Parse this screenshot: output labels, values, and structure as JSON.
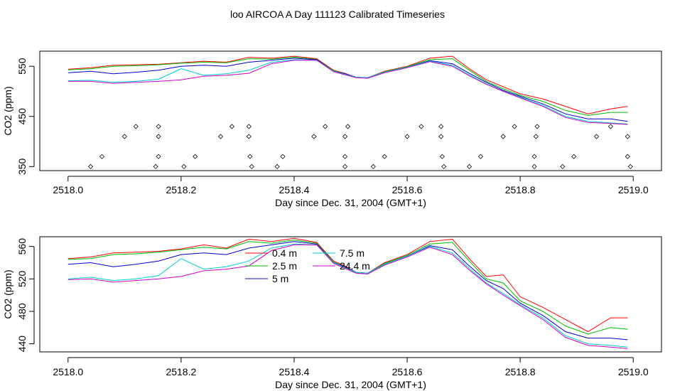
{
  "title": "loo AIRCOA A  Day 111123  Calibrated Timeseries",
  "chart_data": [
    {
      "type": "line",
      "xlabel": "Day since Dec. 31, 2004 (GMT+1)",
      "ylabel": "CO2 (ppm)",
      "xlim": [
        2517.95,
        2519.05
      ],
      "ylim": [
        342,
        580
      ],
      "xticks": [
        "2518.0",
        "2518.2",
        "2518.4",
        "2518.6",
        "2518.8",
        "2519.0"
      ],
      "yticks": [
        "350",
        "450",
        "550"
      ],
      "grid": false,
      "legend": "none",
      "series": [
        {
          "color": "#ff0000",
          "x": [
            2518.0,
            2518.04,
            2518.08,
            2518.12,
            2518.16,
            2518.2,
            2518.24,
            2518.28,
            2518.32,
            2518.36,
            2518.4,
            2518.44,
            2518.47,
            2518.49,
            2518.51,
            2518.53,
            2518.56,
            2518.6,
            2518.64,
            2518.68,
            2518.71,
            2518.74,
            2518.77,
            2518.8,
            2518.84,
            2518.88,
            2518.92,
            2518.96,
            2518.99
          ],
          "y": [
            544,
            547,
            552,
            553,
            554,
            557,
            560,
            558,
            568,
            566,
            570,
            565,
            542,
            536,
            528,
            527,
            540,
            550,
            566,
            570,
            545,
            523,
            509,
            495,
            485,
            470,
            455,
            465,
            470
          ]
        },
        {
          "color": "#00bb00",
          "x": [
            2518.0,
            2518.04,
            2518.08,
            2518.12,
            2518.16,
            2518.2,
            2518.24,
            2518.28,
            2518.32,
            2518.36,
            2518.4,
            2518.44,
            2518.47,
            2518.49,
            2518.51,
            2518.53,
            2518.56,
            2518.6,
            2518.64,
            2518.68,
            2518.71,
            2518.74,
            2518.77,
            2518.8,
            2518.84,
            2518.88,
            2518.92,
            2518.96,
            2518.99
          ],
          "y": [
            543,
            545,
            550,
            551,
            553,
            556,
            558,
            557,
            565,
            564,
            568,
            564,
            541,
            535,
            528,
            527,
            539,
            549,
            563,
            565,
            542,
            520,
            505,
            492,
            480,
            462,
            452,
            458,
            458
          ]
        },
        {
          "color": "#0000cc",
          "x": [
            2518.0,
            2518.04,
            2518.08,
            2518.12,
            2518.16,
            2518.2,
            2518.24,
            2518.28,
            2518.32,
            2518.36,
            2518.4,
            2518.44,
            2518.47,
            2518.49,
            2518.51,
            2518.53,
            2518.56,
            2518.6,
            2518.64,
            2518.68,
            2518.71,
            2518.74,
            2518.77,
            2518.8,
            2518.84,
            2518.88,
            2518.92,
            2518.96,
            2518.99
          ],
          "y": [
            537,
            540,
            535,
            538,
            542,
            550,
            552,
            550,
            558,
            562,
            566,
            563,
            540,
            535,
            528,
            527,
            538,
            548,
            561,
            555,
            536,
            518,
            502,
            490,
            475,
            455,
            445,
            445,
            440
          ]
        },
        {
          "color": "#00cccc",
          "x": [
            2518.0,
            2518.04,
            2518.08,
            2518.12,
            2518.16,
            2518.2,
            2518.24,
            2518.28,
            2518.32,
            2518.36,
            2518.4,
            2518.44,
            2518.47,
            2518.49,
            2518.51,
            2518.53,
            2518.56,
            2518.6,
            2518.64,
            2518.68,
            2518.71,
            2518.74,
            2518.77,
            2518.8,
            2518.84,
            2518.88,
            2518.92,
            2518.96,
            2518.99
          ],
          "y": [
            521,
            522,
            518,
            520,
            524,
            545,
            532,
            535,
            542,
            558,
            563,
            562,
            540,
            534,
            528,
            527,
            538,
            548,
            560,
            552,
            533,
            515,
            500,
            488,
            472,
            450,
            440,
            437,
            435
          ]
        },
        {
          "color": "#cc00cc",
          "x": [
            2518.0,
            2518.04,
            2518.08,
            2518.12,
            2518.16,
            2518.2,
            2518.24,
            2518.28,
            2518.32,
            2518.36,
            2518.4,
            2518.44,
            2518.47,
            2518.49,
            2518.51,
            2518.53,
            2518.56,
            2518.6,
            2518.64,
            2518.68,
            2518.71,
            2518.74,
            2518.77,
            2518.8,
            2518.84,
            2518.88,
            2518.92,
            2518.96,
            2518.99
          ],
          "y": [
            520,
            520,
            516,
            518,
            520,
            523,
            530,
            532,
            536,
            555,
            562,
            562,
            539,
            533,
            527,
            526,
            537,
            547,
            559,
            550,
            531,
            514,
            500,
            487,
            470,
            448,
            438,
            436,
            434
          ]
        }
      ],
      "markers": {
        "shape": "diamond",
        "x": [
          2518.04,
          2518.06,
          2518.1,
          2518.12,
          2518.155,
          2518.16,
          2518.16,
          2518.16,
          2518.205,
          2518.225,
          2518.27,
          2518.29,
          2518.32,
          2518.32,
          2518.322,
          2518.325,
          2518.37,
          2518.38,
          2518.435,
          2518.455,
          2518.49,
          2518.49,
          2518.49,
          2518.495,
          2518.54,
          2518.56,
          2518.6,
          2518.625,
          2518.66,
          2518.66,
          2518.662,
          2518.665,
          2518.71,
          2518.73,
          2518.77,
          2518.79,
          2518.825,
          2518.825,
          2518.828,
          2518.83,
          2518.875,
          2518.895,
          2518.935,
          2518.96,
          2518.99,
          2518.99,
          2518.995
        ],
        "y": [
          350,
          370,
          410,
          430,
          350,
          370,
          410,
          430,
          350,
          370,
          410,
          430,
          430,
          410,
          370,
          350,
          350,
          370,
          410,
          430,
          350,
          370,
          410,
          430,
          350,
          370,
          410,
          430,
          430,
          410,
          370,
          350,
          350,
          370,
          410,
          430,
          350,
          370,
          410,
          430,
          350,
          370,
          410,
          430,
          410,
          370,
          350
        ]
      }
    },
    {
      "type": "line",
      "xlabel": "Day since Dec. 31, 2004 (GMT+1)",
      "ylabel": "CO2 (ppm)",
      "xlim": [
        2517.95,
        2519.05
      ],
      "ylim": [
        430,
        572
      ],
      "xticks": [
        "2518.0",
        "2518.2",
        "2518.4",
        "2518.6",
        "2518.8",
        "2519.0"
      ],
      "yticks": [
        "440",
        "480",
        "520",
        "560"
      ],
      "grid": false,
      "legend": "top-center",
      "series": [
        {
          "name": "0.4 m",
          "color": "#ff0000",
          "x": [
            2518.0,
            2518.04,
            2518.08,
            2518.12,
            2518.16,
            2518.2,
            2518.24,
            2518.28,
            2518.32,
            2518.36,
            2518.4,
            2518.44,
            2518.47,
            2518.49,
            2518.51,
            2518.53,
            2518.56,
            2518.6,
            2518.64,
            2518.68,
            2518.71,
            2518.74,
            2518.77,
            2518.8,
            2518.84,
            2518.88,
            2518.92,
            2518.96,
            2518.99
          ],
          "y": [
            545,
            547,
            552,
            553,
            554,
            557,
            562,
            558,
            569,
            566,
            570,
            565,
            542,
            536,
            528,
            527,
            540,
            550,
            566,
            569,
            545,
            523,
            525,
            498,
            485,
            470,
            455,
            472,
            472
          ]
        },
        {
          "name": "2.5 m",
          "color": "#00bb00",
          "x": [
            2518.0,
            2518.04,
            2518.08,
            2518.12,
            2518.16,
            2518.2,
            2518.24,
            2518.28,
            2518.32,
            2518.36,
            2518.4,
            2518.44,
            2518.47,
            2518.49,
            2518.51,
            2518.53,
            2518.56,
            2518.6,
            2518.64,
            2518.68,
            2518.71,
            2518.74,
            2518.77,
            2518.8,
            2518.84,
            2518.88,
            2518.92,
            2518.96,
            2518.99
          ],
          "y": [
            544,
            545,
            550,
            551,
            553,
            556,
            559,
            557,
            566,
            564,
            568,
            564,
            541,
            535,
            528,
            527,
            539,
            549,
            563,
            565,
            542,
            520,
            515,
            493,
            480,
            462,
            452,
            460,
            458
          ]
        },
        {
          "name": "5 m",
          "color": "#0000cc",
          "x": [
            2518.0,
            2518.04,
            2518.08,
            2518.12,
            2518.16,
            2518.2,
            2518.24,
            2518.28,
            2518.32,
            2518.36,
            2518.4,
            2518.44,
            2518.47,
            2518.49,
            2518.51,
            2518.53,
            2518.56,
            2518.6,
            2518.64,
            2518.68,
            2518.71,
            2518.74,
            2518.77,
            2518.8,
            2518.84,
            2518.88,
            2518.92,
            2518.96,
            2518.99
          ],
          "y": [
            538,
            540,
            535,
            538,
            542,
            550,
            552,
            550,
            558,
            562,
            566,
            563,
            540,
            535,
            528,
            527,
            538,
            548,
            561,
            556,
            536,
            518,
            508,
            490,
            475,
            455,
            447,
            447,
            445
          ]
        },
        {
          "name": "7.5 m",
          "color": "#00cccc",
          "x": [
            2518.0,
            2518.04,
            2518.08,
            2518.12,
            2518.16,
            2518.2,
            2518.24,
            2518.28,
            2518.32,
            2518.36,
            2518.4,
            2518.44,
            2518.47,
            2518.49,
            2518.51,
            2518.53,
            2518.56,
            2518.6,
            2518.64,
            2518.68,
            2518.71,
            2518.74,
            2518.77,
            2518.8,
            2518.84,
            2518.88,
            2518.92,
            2518.96,
            2518.99
          ],
          "y": [
            520,
            522,
            518,
            520,
            524,
            545,
            532,
            535,
            542,
            558,
            563,
            562,
            540,
            534,
            528,
            527,
            538,
            548,
            560,
            552,
            533,
            515,
            502,
            488,
            472,
            450,
            440,
            438,
            436
          ]
        },
        {
          "name": "24.4 m",
          "color": "#cc00cc",
          "x": [
            2518.0,
            2518.04,
            2518.08,
            2518.12,
            2518.16,
            2518.2,
            2518.24,
            2518.28,
            2518.32,
            2518.36,
            2518.4,
            2518.44,
            2518.47,
            2518.49,
            2518.51,
            2518.53,
            2518.56,
            2518.6,
            2518.64,
            2518.68,
            2518.71,
            2518.74,
            2518.77,
            2518.8,
            2518.84,
            2518.88,
            2518.92,
            2518.96,
            2518.99
          ],
          "y": [
            519,
            520,
            516,
            518,
            520,
            523,
            530,
            532,
            536,
            555,
            562,
            562,
            539,
            533,
            527,
            526,
            537,
            547,
            559,
            550,
            531,
            514,
            500,
            487,
            470,
            448,
            438,
            436,
            434
          ]
        }
      ]
    }
  ]
}
